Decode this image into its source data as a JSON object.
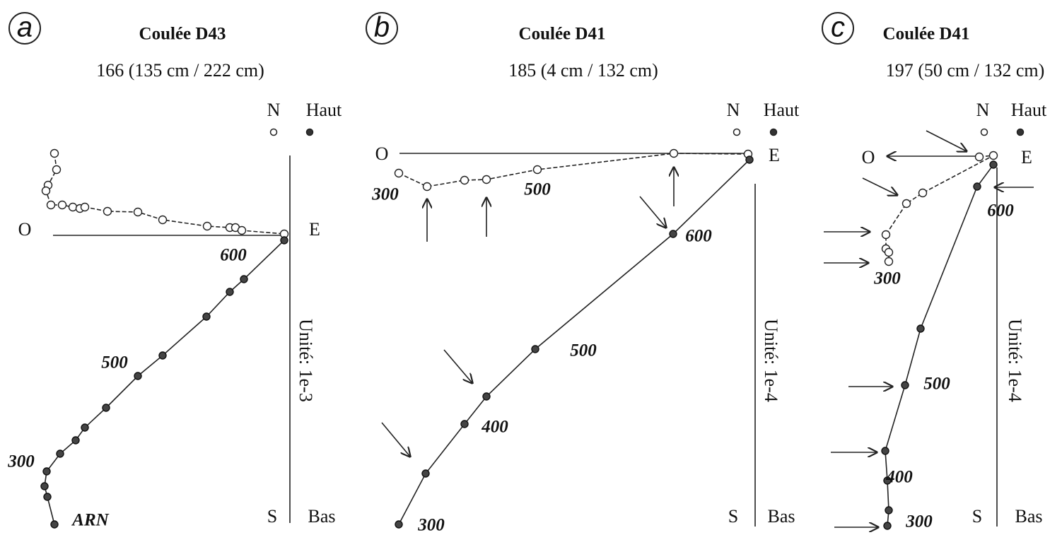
{
  "panels": [
    {
      "label": "a",
      "title": "Coulée D43",
      "subtitle": "166 (135 cm / 222 cm)",
      "north": "N",
      "up": "Haut",
      "west": "O",
      "east": "E",
      "south": "S",
      "down": "Bas",
      "unit": "Unité: 1e-3",
      "step_labels": [
        "600",
        "500",
        "300",
        "ARN"
      ]
    },
    {
      "label": "b",
      "title": "Coulée D41",
      "subtitle": "185 (4 cm / 132 cm)",
      "north": "N",
      "up": "Haut",
      "west": "O",
      "east": "E",
      "south": "S",
      "down": "Bas",
      "unit": "Unité: 1e-4",
      "step_labels": [
        "300",
        "500",
        "600",
        "500",
        "400",
        "300"
      ]
    },
    {
      "label": "c",
      "title": "Coulée D41",
      "subtitle": "197 (50 cm / 132 cm)",
      "north": "N",
      "up": "Haut",
      "west": "O",
      "east": "E",
      "south": "S",
      "down": "Bas",
      "unit": "Unité: 1e-4",
      "step_labels": [
        "600",
        "300",
        "500",
        "400",
        "300"
      ]
    }
  ]
}
